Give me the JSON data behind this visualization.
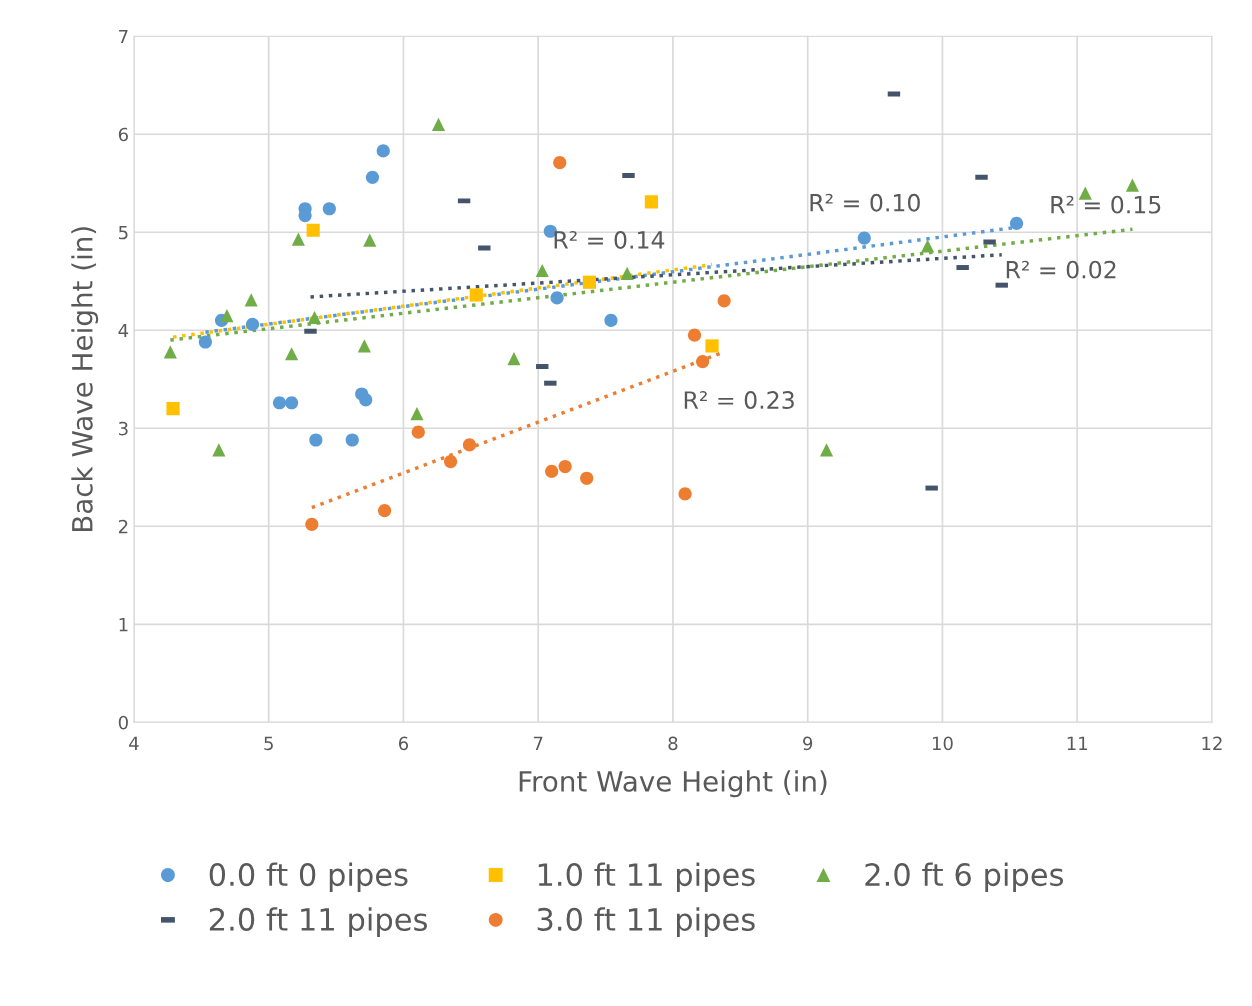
{
  "chart_data": {
    "type": "scatter",
    "xlabel": "Front Wave Height (in)",
    "ylabel": "Back Wave Height (in)",
    "xlim": [
      4,
      12
    ],
    "xticks": [
      4,
      5,
      6,
      7,
      8,
      9,
      10,
      11,
      12
    ],
    "ylim": [
      0,
      7
    ],
    "yticks": [
      0,
      1,
      2,
      3,
      4,
      5,
      6,
      7
    ],
    "grid": true,
    "legend": "bottom",
    "series": [
      {
        "name": "0.0 ft 0 pipes",
        "color": "#5b9bd5",
        "marker": "circle",
        "x": [
          4.65,
          4.53,
          4.88,
          5.27,
          5.27,
          5.45,
          5.77,
          5.85,
          5.08,
          5.17,
          5.35,
          5.62,
          5.69,
          5.72,
          7.09,
          7.14,
          7.54,
          9.42,
          10.55
        ],
        "values": [
          4.1,
          3.88,
          4.06,
          5.24,
          5.17,
          5.24,
          5.56,
          5.83,
          3.26,
          3.26,
          2.88,
          2.88,
          3.35,
          3.29,
          5.01,
          4.33,
          4.1,
          4.94,
          5.09
        ]
      },
      {
        "name": "1.0 ft 11 pipes",
        "color": "#ffc000",
        "marker": "square",
        "x": [
          4.29,
          5.33,
          6.54,
          7.38,
          7.84,
          8.29
        ],
        "values": [
          3.2,
          5.02,
          4.36,
          4.49,
          5.31,
          3.84
        ]
      },
      {
        "name": "2.0 ft 6 pipes",
        "color": "#70ad47",
        "marker": "triangle",
        "x": [
          4.27,
          4.69,
          4.63,
          4.87,
          5.22,
          5.17,
          5.34,
          5.75,
          5.71,
          6.26,
          6.1,
          6.82,
          7.03,
          7.66,
          9.14,
          9.89,
          11.06,
          11.41
        ],
        "values": [
          3.78,
          4.15,
          2.78,
          4.31,
          4.93,
          3.76,
          4.13,
          4.92,
          3.84,
          6.1,
          3.15,
          3.71,
          4.61,
          4.58,
          2.78,
          4.86,
          5.4,
          5.48
        ]
      },
      {
        "name": "2.0 ft 11 pipes",
        "color": "#44546a",
        "x": [
          5.31,
          6.45,
          6.6,
          7.03,
          7.09,
          7.67,
          9.64,
          9.92,
          10.15,
          10.29,
          10.35,
          10.44
        ],
        "values": [
          3.99,
          5.32,
          4.84,
          3.63,
          3.46,
          5.58,
          6.41,
          2.39,
          4.64,
          5.56,
          4.9,
          4.46
        ]
      },
      {
        "name": "3.0 ft 11 pipes",
        "color": "#ed7d31",
        "marker": "circle",
        "x": [
          5.32,
          5.86,
          6.11,
          6.35,
          6.49,
          7.1,
          7.2,
          7.36,
          7.16,
          8.09,
          8.16,
          8.22,
          8.38
        ],
        "values": [
          2.02,
          2.16,
          2.96,
          2.66,
          2.83,
          2.56,
          2.61,
          2.49,
          5.71,
          2.33,
          3.95,
          3.68,
          4.3
        ]
      },
      {
        "type": "line",
        "color": "#5b9bd5",
        "line_style": "dotted",
        "marker": "none",
        "x": [
          4.53,
          10.55
        ],
        "values": [
          3.98,
          5.05
        ]
      },
      {
        "type": "line",
        "color": "#ffc000",
        "line_style": "dotted",
        "marker": "none",
        "x": [
          4.29,
          8.29
        ],
        "values": [
          3.93,
          4.67
        ]
      },
      {
        "type": "line",
        "color": "#70ad47",
        "line_style": "dotted",
        "marker": "none",
        "x": [
          4.27,
          11.41
        ],
        "values": [
          3.9,
          5.03
        ]
      },
      {
        "type": "line",
        "color": "#44546a",
        "line_style": "dotted",
        "marker": "none",
        "x": [
          5.31,
          10.44
        ],
        "values": [
          4.34,
          4.77
        ]
      },
      {
        "type": "line",
        "color": "#ed7d31",
        "line_style": "dotted",
        "marker": "none",
        "x": [
          5.32,
          8.38
        ],
        "values": [
          2.19,
          3.78
        ]
      }
    ],
    "annotations": [
      "R² = 0.10",
      "R² = 0.14",
      "R² = 0.15",
      "R² = 0.02",
      "R² = 0.23"
    ]
  }
}
